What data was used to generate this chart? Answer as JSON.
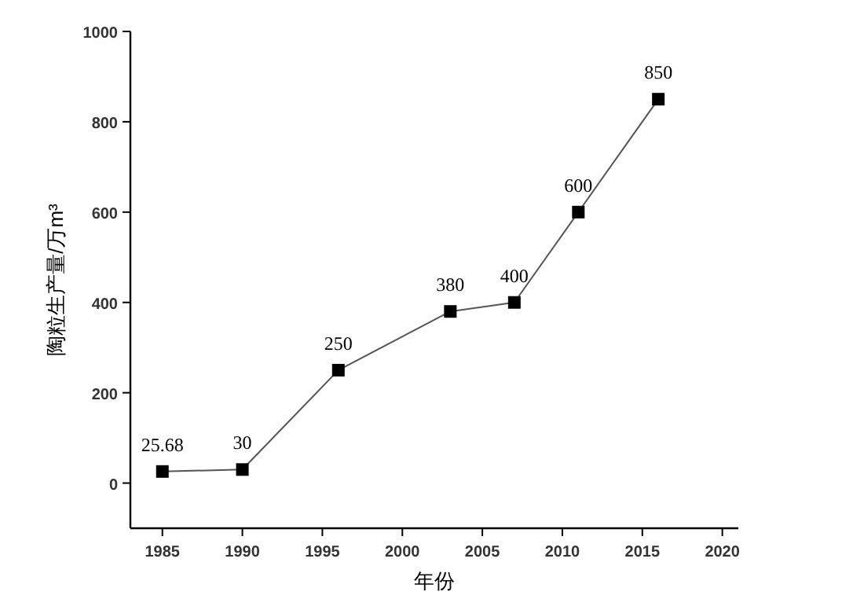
{
  "chart_data": {
    "type": "line",
    "xlabel": "年份",
    "ylabel": "陶粒生产量/万m³",
    "x": [
      1985,
      1990,
      1996,
      2003,
      2007,
      2011,
      2016
    ],
    "series": [
      {
        "color": "#000000",
        "values": [
          25.68,
          30,
          250,
          380,
          400,
          600,
          850
        ]
      }
    ],
    "xlim": [
      1983,
      2021
    ],
    "xticks": [
      1985,
      1990,
      1995,
      2000,
      2005,
      2010,
      2015,
      2020
    ],
    "ylim": [
      -100,
      1000
    ],
    "yticks": [
      0,
      200,
      400,
      600,
      800,
      1000
    ],
    "marker": "square",
    "line_style": "solid",
    "data_labels": true,
    "grid": false
  }
}
